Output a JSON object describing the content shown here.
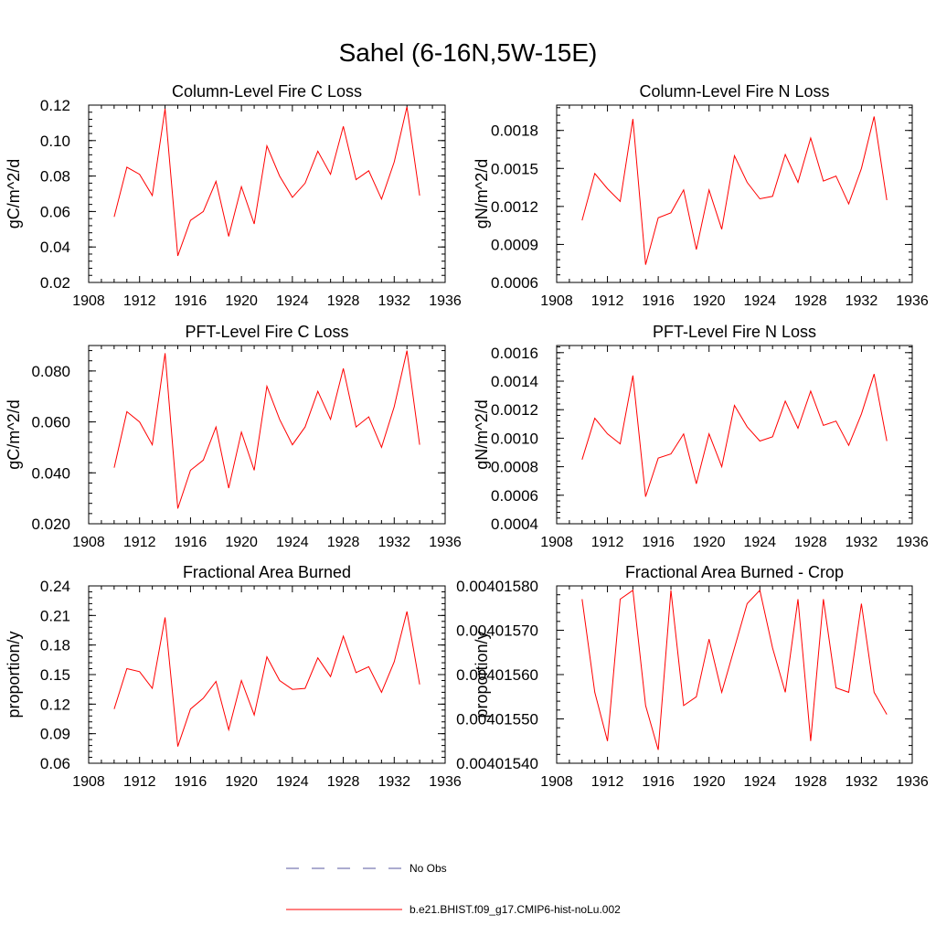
{
  "page": {
    "title": "Sahel (6-16N,5W-15E)"
  },
  "legend": {
    "items": [
      {
        "label": "No Obs",
        "color": "#5a5aa0",
        "style": "dashed"
      },
      {
        "label": "b.e21.BHIST.f09_g17.CMIP6-hist-noLu.002",
        "color": "#ff0000",
        "style": "solid"
      }
    ]
  },
  "chart_data": [
    {
      "type": "line",
      "title": "Column-Level Fire C Loss",
      "ylabel": "gC/m^2/d",
      "xlim": [
        1908,
        1936
      ],
      "ylim": [
        0.02,
        0.12
      ],
      "xticks": [
        "1908",
        "1912",
        "1916",
        "1920",
        "1924",
        "1928",
        "1932",
        "1936"
      ],
      "yticks": [
        "0.02",
        "0.04",
        "0.06",
        "0.08",
        "0.10",
        "0.12"
      ],
      "x": [
        1910,
        1911,
        1912,
        1913,
        1914,
        1915,
        1916,
        1917,
        1918,
        1919,
        1920,
        1921,
        1922,
        1923,
        1924,
        1925,
        1926,
        1927,
        1928,
        1929,
        1930,
        1931,
        1932,
        1933,
        1934
      ],
      "series": [
        {
          "color": "#ff0000",
          "values": [
            0.057,
            0.085,
            0.081,
            0.069,
            0.118,
            0.035,
            0.055,
            0.06,
            0.077,
            0.046,
            0.074,
            0.053,
            0.097,
            0.08,
            0.068,
            0.076,
            0.094,
            0.081,
            0.108,
            0.078,
            0.083,
            0.067,
            0.088,
            0.119,
            0.069
          ]
        }
      ]
    },
    {
      "type": "line",
      "title": "Column-Level Fire N Loss",
      "ylabel": "gN/m^2/d",
      "xlim": [
        1908,
        1936
      ],
      "ylim": [
        0.0006,
        0.002
      ],
      "xticks": [
        "1908",
        "1912",
        "1916",
        "1920",
        "1924",
        "1928",
        "1932",
        "1936"
      ],
      "yticks": [
        "0.0006",
        "0.0009",
        "0.0012",
        "0.0015",
        "0.0018"
      ],
      "x": [
        1910,
        1911,
        1912,
        1913,
        1914,
        1915,
        1916,
        1917,
        1918,
        1919,
        1920,
        1921,
        1922,
        1923,
        1924,
        1925,
        1926,
        1927,
        1928,
        1929,
        1930,
        1931,
        1932,
        1933,
        1934
      ],
      "series": [
        {
          "color": "#ff0000",
          "values": [
            0.00109,
            0.00146,
            0.00134,
            0.00124,
            0.00189,
            0.00074,
            0.00111,
            0.00115,
            0.00133,
            0.00086,
            0.00133,
            0.00102,
            0.0016,
            0.00139,
            0.00126,
            0.00128,
            0.00161,
            0.00139,
            0.00174,
            0.0014,
            0.00144,
            0.00122,
            0.0015,
            0.00191,
            0.00125
          ]
        }
      ]
    },
    {
      "type": "line",
      "title": "PFT-Level Fire C Loss",
      "ylabel": "gC/m^2/d",
      "xlim": [
        1908,
        1936
      ],
      "ylim": [
        0.02,
        0.09
      ],
      "xticks": [
        "1908",
        "1912",
        "1916",
        "1920",
        "1924",
        "1928",
        "1932",
        "1936"
      ],
      "yticks": [
        "0.020",
        "0.040",
        "0.060",
        "0.080"
      ],
      "x": [
        1910,
        1911,
        1912,
        1913,
        1914,
        1915,
        1916,
        1917,
        1918,
        1919,
        1920,
        1921,
        1922,
        1923,
        1924,
        1925,
        1926,
        1927,
        1928,
        1929,
        1930,
        1931,
        1932,
        1933,
        1934
      ],
      "series": [
        {
          "color": "#ff0000",
          "values": [
            0.042,
            0.064,
            0.06,
            0.051,
            0.087,
            0.026,
            0.041,
            0.045,
            0.058,
            0.034,
            0.056,
            0.041,
            0.074,
            0.061,
            0.051,
            0.058,
            0.072,
            0.061,
            0.081,
            0.058,
            0.062,
            0.05,
            0.066,
            0.088,
            0.051
          ]
        }
      ]
    },
    {
      "type": "line",
      "title": "PFT-Level Fire N Loss",
      "ylabel": "gN/m^2/d",
      "xlim": [
        1908,
        1936
      ],
      "ylim": [
        0.0004,
        0.00165
      ],
      "xticks": [
        "1908",
        "1912",
        "1916",
        "1920",
        "1924",
        "1928",
        "1932",
        "1936"
      ],
      "yticks": [
        "0.0004",
        "0.0006",
        "0.0008",
        "0.0010",
        "0.0012",
        "0.0014",
        "0.0016"
      ],
      "x": [
        1910,
        1911,
        1912,
        1913,
        1914,
        1915,
        1916,
        1917,
        1918,
        1919,
        1920,
        1921,
        1922,
        1923,
        1924,
        1925,
        1926,
        1927,
        1928,
        1929,
        1930,
        1931,
        1932,
        1933,
        1934
      ],
      "series": [
        {
          "color": "#ff0000",
          "values": [
            0.00085,
            0.00114,
            0.00103,
            0.00096,
            0.00144,
            0.00059,
            0.00086,
            0.00089,
            0.00103,
            0.00068,
            0.00103,
            0.0008,
            0.00123,
            0.00108,
            0.00098,
            0.00101,
            0.00126,
            0.00107,
            0.00133,
            0.00109,
            0.00112,
            0.00095,
            0.00117,
            0.00145,
            0.00098
          ]
        }
      ]
    },
    {
      "type": "line",
      "title": "Fractional Area Burned",
      "ylabel": "proportion/y",
      "xlim": [
        1908,
        1936
      ],
      "ylim": [
        0.06,
        0.24
      ],
      "xticks": [
        "1908",
        "1912",
        "1916",
        "1920",
        "1924",
        "1928",
        "1932",
        "1936"
      ],
      "yticks": [
        "0.06",
        "0.09",
        "0.12",
        "0.15",
        "0.18",
        "0.21",
        "0.24"
      ],
      "x": [
        1910,
        1911,
        1912,
        1913,
        1914,
        1915,
        1916,
        1917,
        1918,
        1919,
        1920,
        1921,
        1922,
        1923,
        1924,
        1925,
        1926,
        1927,
        1928,
        1929,
        1930,
        1931,
        1932,
        1933,
        1934
      ],
      "series": [
        {
          "color": "#ff0000",
          "values": [
            0.115,
            0.156,
            0.153,
            0.136,
            0.208,
            0.077,
            0.115,
            0.126,
            0.143,
            0.094,
            0.144,
            0.109,
            0.168,
            0.144,
            0.135,
            0.136,
            0.167,
            0.148,
            0.189,
            0.152,
            0.158,
            0.132,
            0.163,
            0.214,
            0.14
          ]
        }
      ]
    },
    {
      "type": "line",
      "title": "Fractional Area Burned - Crop",
      "ylabel": "proportion/y",
      "xlim": [
        1908,
        1936
      ],
      "ylim": [
        0.0040154,
        0.0040158
      ],
      "xticks": [
        "1908",
        "1912",
        "1916",
        "1920",
        "1924",
        "1928",
        "1932",
        "1936"
      ],
      "yticks": [
        "0.00401540",
        "0.00401550",
        "0.00401560",
        "0.00401570",
        "0.00401580"
      ],
      "x": [
        1910,
        1911,
        1912,
        1913,
        1914,
        1915,
        1916,
        1917,
        1918,
        1919,
        1920,
        1921,
        1922,
        1923,
        1924,
        1925,
        1926,
        1927,
        1928,
        1929,
        1930,
        1931,
        1932,
        1933,
        1934
      ],
      "series": [
        {
          "color": "#ff0000",
          "values": [
            0.00401577,
            0.00401556,
            0.00401545,
            0.00401577,
            0.00401579,
            0.00401553,
            0.00401543,
            0.00401579,
            0.00401553,
            0.00401555,
            0.00401568,
            0.00401556,
            0.00401566,
            0.00401576,
            0.00401579,
            0.00401566,
            0.00401556,
            0.00401577,
            0.00401545,
            0.00401577,
            0.00401557,
            0.00401556,
            0.00401576,
            0.00401556,
            0.00401551
          ]
        }
      ]
    }
  ]
}
